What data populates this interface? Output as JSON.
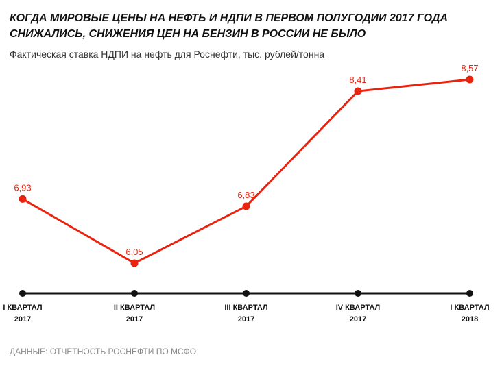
{
  "chart_data": {
    "type": "line",
    "title": [
      "КОГДА МИРОВЫЕ ЦЕНЫ НА НЕФТЬ И НДПИ В ПЕРВОМ ПОЛУГОДИИ 2017 ГОДА",
      "СНИЖАЛИСЬ, СНИЖЕНИЯ  ЦЕН НА БЕНЗИН В РОССИИ НЕ БЫЛО"
    ],
    "subtitle": "Фактическая ставка НДПИ на нефть для Роснефти, тыс. рублей/тонна",
    "categories": [
      "I КВАРТАЛ\n2017",
      "II КВАРТАЛ\n2017",
      "III КВАРТАЛ\n2017",
      "IV КВАРТАЛ\n2017",
      "I КВАРТАЛ\n2018"
    ],
    "values": [
      6.93,
      6.05,
      6.83,
      8.41,
      8.57
    ],
    "value_labels": [
      "6,93",
      "6,05",
      "6,83",
      "8,41",
      "8,57"
    ],
    "color": "#e8230f",
    "source": "ДАННЫЕ: ОТЧЕТНОСТЬ РОСНЕФТИ ПО МСФО"
  }
}
